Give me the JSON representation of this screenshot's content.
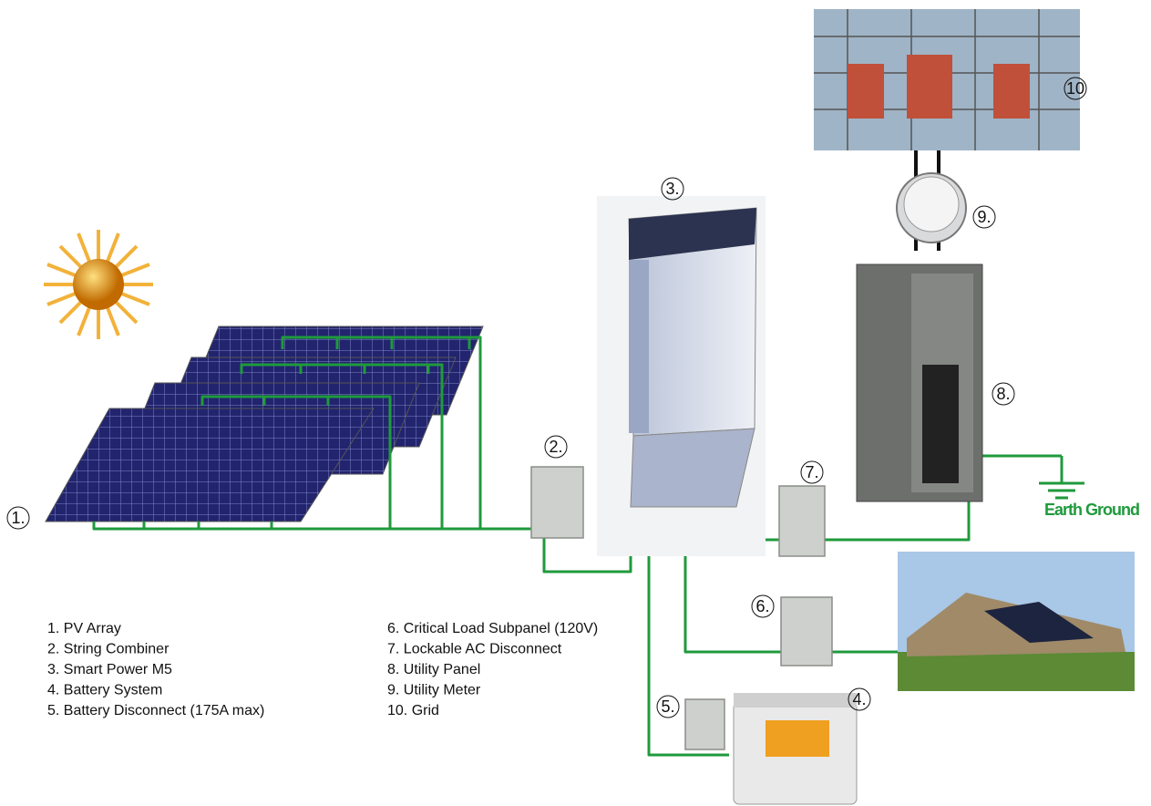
{
  "nodes": [
    {
      "label": "1."
    },
    {
      "label": "2."
    },
    {
      "label": "3."
    },
    {
      "label": "4."
    },
    {
      "label": "5."
    },
    {
      "label": "6."
    },
    {
      "label": "7."
    },
    {
      "label": "8."
    },
    {
      "label": "9."
    },
    {
      "label": "10"
    }
  ],
  "legend": [
    "1. PV Array",
    "2. String Combiner",
    "3. Smart Power M5",
    "4. Battery System",
    "5. Battery Disconnect  (175A max)",
    "6. Critical Load Subpanel (120V)",
    "7. Lockable AC Disconnect",
    "8. Utility Panel",
    "9. Utility Meter",
    "10. Grid"
  ],
  "ground_label": "Earth Ground"
}
